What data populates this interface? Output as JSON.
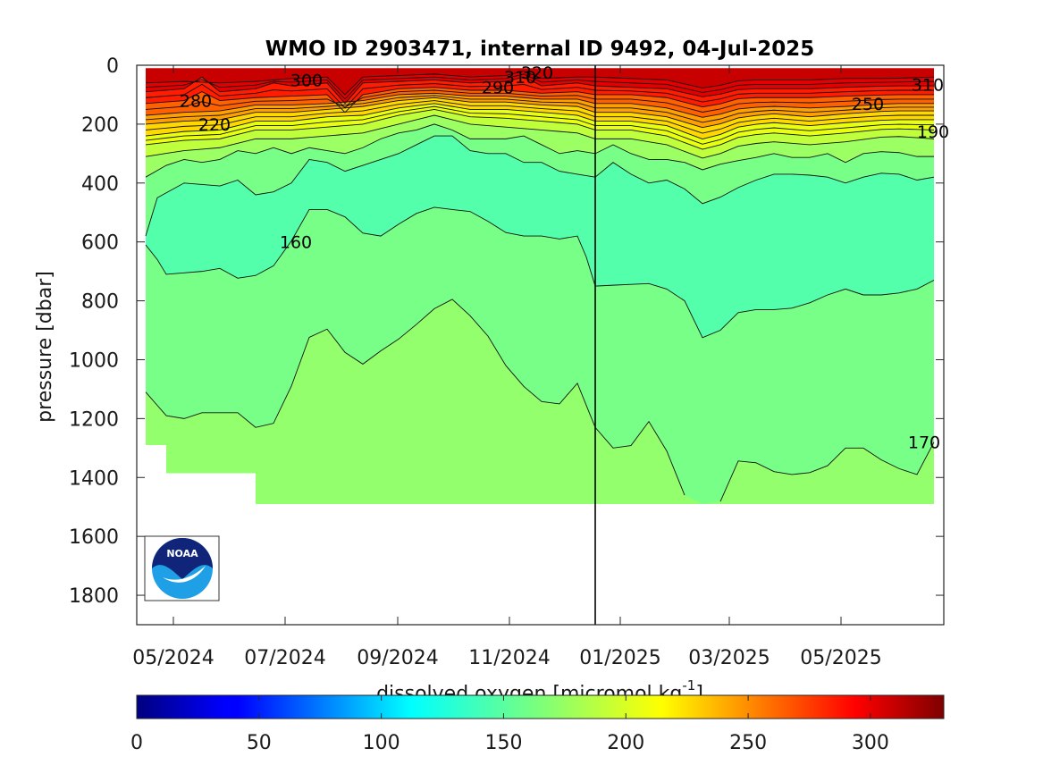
{
  "chart_data": {
    "type": "heatmap",
    "title": "WMO ID 2903471, internal ID 9492, 04-Jul-2025",
    "ylabel": "pressure [dbar]",
    "colorbar_label": "dissolved oxygen [micromol kg",
    "colorbar_label_exponent": "-1",
    "colorbar_label_end": "]",
    "x_ticks": [
      "05/2024",
      "07/2024",
      "09/2024",
      "11/2024",
      "01/2025",
      "03/2025",
      "05/2025"
    ],
    "y_ticks": [
      "0",
      "200",
      "400",
      "600",
      "800",
      "1000",
      "1200",
      "1400",
      "1600",
      "1800"
    ],
    "ylim": [
      0,
      1900
    ],
    "y_reversed": true,
    "colorbar_ticks": [
      "0",
      "50",
      "100",
      "150",
      "200",
      "250",
      "300"
    ],
    "colorbar_range": [
      0,
      330
    ],
    "colormap": "jet",
    "vertical_marker": "01/2025",
    "contour_labels": [
      {
        "text": "300",
        "pressure": 50
      },
      {
        "text": "280",
        "pressure": 120
      },
      {
        "text": "220",
        "pressure": 200
      },
      {
        "text": "160",
        "pressure": 600
      },
      {
        "text": "310",
        "pressure": 40
      },
      {
        "text": "320",
        "pressure": 25
      },
      {
        "text": "290",
        "pressure": 75
      },
      {
        "text": "250",
        "pressure": 130
      },
      {
        "text": "310",
        "pressure": 65
      },
      {
        "text": "190",
        "pressure": 225
      },
      {
        "text": "170",
        "pressure": 1280
      }
    ],
    "layers": [
      {
        "value_range": [
          310,
          330
        ],
        "color": "#c80000"
      },
      {
        "value_range": [
          300,
          310
        ],
        "color": "#e40000"
      },
      {
        "value_range": [
          280,
          300
        ],
        "color": "#ff1c00"
      },
      {
        "value_range": [
          260,
          280
        ],
        "color": "#ff6000"
      },
      {
        "value_range": [
          240,
          260
        ],
        "color": "#ffa000"
      },
      {
        "value_range": [
          220,
          240
        ],
        "color": "#ffd800"
      },
      {
        "value_range": [
          200,
          220
        ],
        "color": "#e8ff10"
      },
      {
        "value_range": [
          190,
          200
        ],
        "color": "#c0ff3c"
      },
      {
        "value_range": [
          180,
          190
        ],
        "color": "#9cff64"
      },
      {
        "value_range": [
          170,
          180
        ],
        "color": "#94ff6c"
      },
      {
        "value_range": [
          160,
          170
        ],
        "color": "#78ff88"
      },
      {
        "value_range": [
          150,
          160
        ],
        "color": "#54ffac"
      }
    ],
    "logo": "noaa-logo"
  }
}
